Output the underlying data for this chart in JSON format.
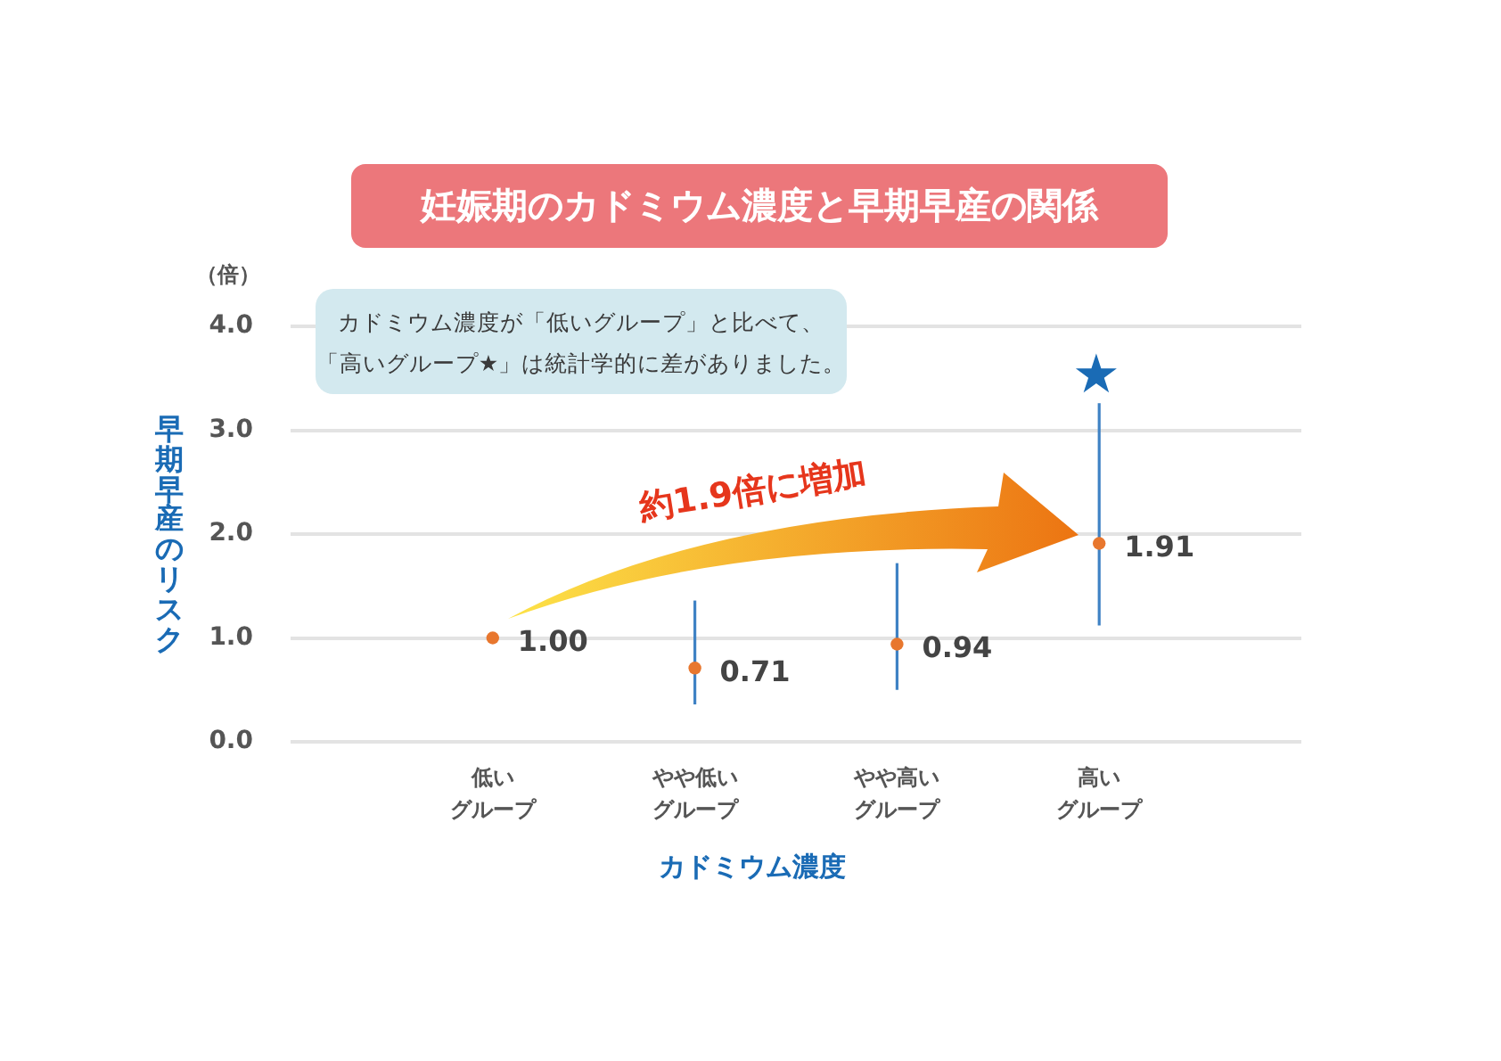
{
  "chart_data": {
    "type": "scatter",
    "title": "妊娠期のカドミウム濃度と早期早産の関係",
    "xlabel": "カドミウム濃度",
    "ylabel": "早期早産のリスク",
    "annotations": [
      "（倍）",
      "カドミウム濃度が「低いグループ」と比べて、「高いグループ★」は統計学的に差がありました。",
      "約1.9倍に増加",
      "★"
    ],
    "categories": [
      "低いグループ",
      "やや低いグループ",
      "やや高いグループ",
      "高いグループ"
    ],
    "values": [
      1.0,
      0.71,
      0.94,
      1.91
    ],
    "color": "#e8772e",
    "errors": [
      null,
      [
        0.36,
        1.36
      ],
      [
        0.5,
        1.72
      ],
      [
        1.12,
        3.26
      ]
    ],
    "value_labels": [
      "1.00",
      "0.71",
      "0.94",
      "1.91"
    ],
    "ylim": [
      0,
      4
    ],
    "yticks": [
      {
        "value": 0,
        "label": "0.0"
      },
      {
        "value": 1,
        "label": "1.0"
      },
      {
        "value": 2,
        "label": "2.0"
      },
      {
        "value": 3,
        "label": "3.0"
      },
      {
        "value": 4,
        "label": "4.0"
      }
    ],
    "grid": "y",
    "marker": "circle"
  }
}
